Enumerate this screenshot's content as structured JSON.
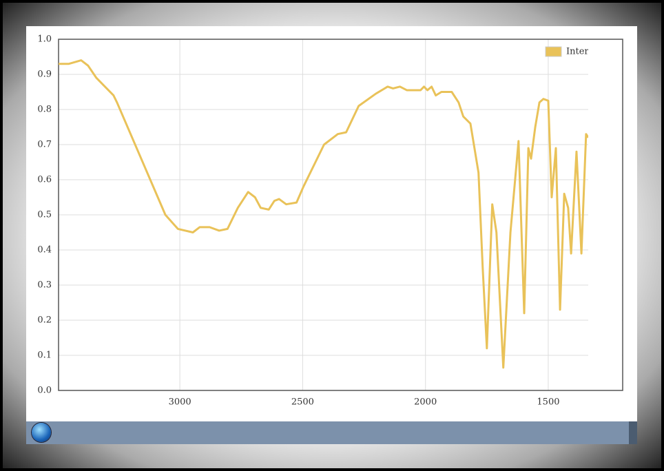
{
  "chart_data": {
    "type": "line",
    "x": [
      3494,
      3452,
      3402,
      3374,
      3340,
      3270,
      3256,
      3059,
      3008,
      2947,
      2919,
      2879,
      2840,
      2806,
      2764,
      2722,
      2694,
      2671,
      2638,
      2615,
      2596,
      2567,
      2525,
      2497,
      2413,
      2357,
      2323,
      2272,
      2202,
      2154,
      2132,
      2104,
      2076,
      2020,
      2006,
      1992,
      1975,
      1958,
      1935,
      1893,
      1865,
      1846,
      1817,
      1784,
      1767,
      1750,
      1728,
      1711,
      1683,
      1654,
      1621,
      1598,
      1581,
      1570,
      1553,
      1536,
      1520,
      1500,
      1486,
      1469,
      1452,
      1435,
      1419,
      1407,
      1385,
      1365,
      1346,
      1337
    ],
    "series": [
      {
        "name": "Inter",
        "color": "#e9c259",
        "values": [
          0.93,
          0.93,
          0.94,
          0.925,
          0.89,
          0.84,
          0.82,
          0.5,
          0.46,
          0.45,
          0.465,
          0.465,
          0.455,
          0.46,
          0.52,
          0.565,
          0.55,
          0.52,
          0.515,
          0.54,
          0.545,
          0.53,
          0.535,
          0.58,
          0.7,
          0.73,
          0.735,
          0.81,
          0.845,
          0.865,
          0.86,
          0.865,
          0.855,
          0.855,
          0.865,
          0.855,
          0.865,
          0.84,
          0.85,
          0.85,
          0.82,
          0.78,
          0.76,
          0.62,
          0.35,
          0.12,
          0.53,
          0.45,
          0.065,
          0.45,
          0.71,
          0.22,
          0.69,
          0.66,
          0.75,
          0.82,
          0.83,
          0.825,
          0.55,
          0.69,
          0.23,
          0.56,
          0.52,
          0.39,
          0.68,
          0.39,
          0.73,
          0.72
        ]
      }
    ],
    "xlim": [
      3494,
      1197
    ],
    "xticks": [
      3000,
      2500,
      2000,
      1500
    ],
    "ylim": [
      0,
      1
    ],
    "yticks": [
      {
        "value": 0,
        "label": "0.0"
      },
      0.1,
      0.2,
      0.3,
      0.4,
      0.5,
      0.6,
      0.7,
      0.8,
      0.9,
      {
        "value": 1,
        "label": "1.0"
      }
    ],
    "grid": true,
    "legend": "top-right"
  }
}
